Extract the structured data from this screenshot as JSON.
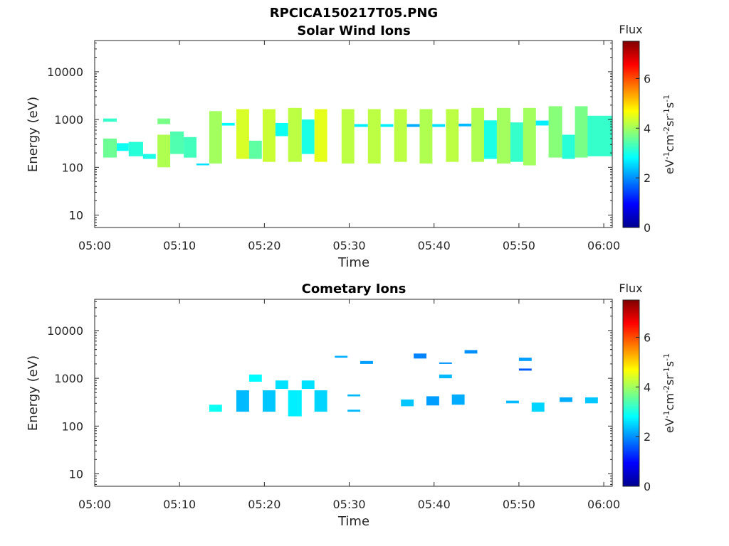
{
  "figure_title": "RPCICA150217T05.PNG",
  "colormap": [
    "#00008f",
    "#0000ff",
    "#0080ff",
    "#00ffff",
    "#80ff80",
    "#ffff00",
    "#ff8000",
    "#ff0000",
    "#800000"
  ],
  "chart_data": [
    {
      "type": "heatmap",
      "title": "Solar Wind Ions",
      "xlabel": "Time",
      "ylabel": "Energy (eV)",
      "x_ticks": [
        "05:00",
        "05:10",
        "05:20",
        "05:30",
        "05:40",
        "05:50",
        "06:00"
      ],
      "x_range_minutes": [
        0,
        61
      ],
      "y_scale": "log",
      "y_ticks": [
        "10",
        "100",
        "1000",
        "10000"
      ],
      "y_range": [
        5.5,
        45000
      ],
      "colorbar": {
        "label": "Flux",
        "unit": "eV-1cm-2sr-1s-1",
        "ticks": [
          "0",
          "2",
          "4",
          "6"
        ],
        "range": [
          0,
          7.5
        ]
      },
      "blocks": [
        {
          "t0": 1.0,
          "t1": 2.6,
          "e0": 900,
          "e1": 1050,
          "v": 3.2
        },
        {
          "t0": 1.0,
          "t1": 2.6,
          "e0": 160,
          "e1": 400,
          "v": 3.6
        },
        {
          "t0": 2.6,
          "t1": 4.0,
          "e0": 220,
          "e1": 320,
          "v": 2.9
        },
        {
          "t0": 4.0,
          "t1": 5.7,
          "e0": 170,
          "e1": 340,
          "v": 3.1
        },
        {
          "t0": 5.7,
          "t1": 7.2,
          "e0": 150,
          "e1": 190,
          "v": 3.0
        },
        {
          "t0": 7.4,
          "t1": 8.9,
          "e0": 100,
          "e1": 480,
          "v": 4.1
        },
        {
          "t0": 7.4,
          "t1": 8.9,
          "e0": 800,
          "e1": 1050,
          "v": 3.7
        },
        {
          "t0": 8.9,
          "t1": 10.5,
          "e0": 190,
          "e1": 560,
          "v": 3.4
        },
        {
          "t0": 10.5,
          "t1": 12.0,
          "e0": 160,
          "e1": 430,
          "v": 3.3
        },
        {
          "t0": 12.0,
          "t1": 13.5,
          "e0": 110,
          "e1": 120,
          "v": 2.6
        },
        {
          "t0": 13.5,
          "t1": 15.0,
          "e0": 120,
          "e1": 1500,
          "v": 4.0
        },
        {
          "t0": 15.0,
          "t1": 16.5,
          "e0": 750,
          "e1": 850,
          "v": 2.8
        },
        {
          "t0": 16.7,
          "t1": 18.2,
          "e0": 150,
          "e1": 1650,
          "v": 4.4
        },
        {
          "t0": 18.2,
          "t1": 19.7,
          "e0": 150,
          "e1": 360,
          "v": 3.5
        },
        {
          "t0": 19.8,
          "t1": 21.3,
          "e0": 130,
          "e1": 1650,
          "v": 4.3
        },
        {
          "t0": 21.3,
          "t1": 22.8,
          "e0": 450,
          "e1": 850,
          "v": 2.9
        },
        {
          "t0": 22.8,
          "t1": 24.4,
          "e0": 130,
          "e1": 1750,
          "v": 4.2
        },
        {
          "t0": 24.4,
          "t1": 25.9,
          "e0": 190,
          "e1": 1000,
          "v": 3.0
        },
        {
          "t0": 25.9,
          "t1": 27.4,
          "e0": 130,
          "e1": 1650,
          "v": 4.5
        },
        {
          "t0": 29.1,
          "t1": 30.6,
          "e0": 120,
          "e1": 1650,
          "v": 4.2
        },
        {
          "t0": 30.6,
          "t1": 32.2,
          "e0": 700,
          "e1": 800,
          "v": 2.7
        },
        {
          "t0": 32.2,
          "t1": 33.7,
          "e0": 120,
          "e1": 1650,
          "v": 4.2
        },
        {
          "t0": 33.7,
          "t1": 35.2,
          "e0": 700,
          "e1": 800,
          "v": 2.7
        },
        {
          "t0": 35.3,
          "t1": 36.8,
          "e0": 130,
          "e1": 1650,
          "v": 4.2
        },
        {
          "t0": 36.8,
          "t1": 38.3,
          "e0": 700,
          "e1": 800,
          "v": 2.2
        },
        {
          "t0": 38.3,
          "t1": 39.8,
          "e0": 120,
          "e1": 1650,
          "v": 4.1
        },
        {
          "t0": 39.8,
          "t1": 41.3,
          "e0": 700,
          "e1": 800,
          "v": 2.6
        },
        {
          "t0": 41.4,
          "t1": 42.9,
          "e0": 130,
          "e1": 1650,
          "v": 4.2
        },
        {
          "t0": 42.9,
          "t1": 44.4,
          "e0": 720,
          "e1": 820,
          "v": 2.3
        },
        {
          "t0": 44.4,
          "t1": 45.9,
          "e0": 130,
          "e1": 1750,
          "v": 4.1
        },
        {
          "t0": 45.9,
          "t1": 47.4,
          "e0": 150,
          "e1": 960,
          "v": 3.0
        },
        {
          "t0": 47.4,
          "t1": 49.0,
          "e0": 120,
          "e1": 1750,
          "v": 4.0
        },
        {
          "t0": 49.0,
          "t1": 50.5,
          "e0": 130,
          "e1": 870,
          "v": 3.2
        },
        {
          "t0": 50.5,
          "t1": 52.0,
          "e0": 110,
          "e1": 1750,
          "v": 4.0
        },
        {
          "t0": 52.0,
          "t1": 53.5,
          "e0": 750,
          "e1": 950,
          "v": 2.7
        },
        {
          "t0": 53.5,
          "t1": 55.1,
          "e0": 160,
          "e1": 1900,
          "v": 3.8
        },
        {
          "t0": 55.1,
          "t1": 56.6,
          "e0": 150,
          "e1": 480,
          "v": 3.1
        },
        {
          "t0": 56.6,
          "t1": 58.1,
          "e0": 160,
          "e1": 1900,
          "v": 3.7
        },
        {
          "t0": 58.1,
          "t1": 61.0,
          "e0": 170,
          "e1": 1200,
          "v": 3.2
        }
      ]
    },
    {
      "type": "heatmap",
      "title": "Cometary Ions",
      "xlabel": "Time",
      "ylabel": "Energy (eV)",
      "x_ticks": [
        "05:00",
        "05:10",
        "05:20",
        "05:30",
        "05:40",
        "05:50",
        "06:00"
      ],
      "x_range_minutes": [
        0,
        61
      ],
      "y_scale": "log",
      "y_ticks": [
        "10",
        "100",
        "1000",
        "10000"
      ],
      "y_range": [
        5.5,
        45000
      ],
      "colorbar": {
        "label": "Flux",
        "unit": "eV-1cm-2sr-1s-1",
        "ticks": [
          "0",
          "2",
          "4",
          "6"
        ],
        "range": [
          0,
          7.5
        ]
      },
      "blocks": [
        {
          "t0": 13.5,
          "t1": 15.0,
          "e0": 200,
          "e1": 280,
          "v": 2.9
        },
        {
          "t0": 16.7,
          "t1": 18.2,
          "e0": 200,
          "e1": 560,
          "v": 2.3
        },
        {
          "t0": 18.2,
          "t1": 19.7,
          "e0": 850,
          "e1": 1200,
          "v": 2.8
        },
        {
          "t0": 19.8,
          "t1": 21.3,
          "e0": 200,
          "e1": 560,
          "v": 2.4
        },
        {
          "t0": 21.3,
          "t1": 22.8,
          "e0": 600,
          "e1": 900,
          "v": 2.6
        },
        {
          "t0": 22.8,
          "t1": 24.4,
          "e0": 160,
          "e1": 560,
          "v": 2.7
        },
        {
          "t0": 24.4,
          "t1": 25.9,
          "e0": 600,
          "e1": 900,
          "v": 2.6
        },
        {
          "t0": 25.9,
          "t1": 27.4,
          "e0": 200,
          "e1": 560,
          "v": 2.5
        },
        {
          "t0": 28.3,
          "t1": 29.8,
          "e0": 2700,
          "e1": 2950,
          "v": 2.2
        },
        {
          "t0": 29.8,
          "t1": 31.3,
          "e0": 420,
          "e1": 460,
          "v": 2.3
        },
        {
          "t0": 29.8,
          "t1": 31.3,
          "e0": 200,
          "e1": 220,
          "v": 2.3
        },
        {
          "t0": 31.3,
          "t1": 32.8,
          "e0": 2000,
          "e1": 2300,
          "v": 2.1
        },
        {
          "t0": 36.1,
          "t1": 37.6,
          "e0": 260,
          "e1": 360,
          "v": 2.4
        },
        {
          "t0": 37.6,
          "t1": 39.1,
          "e0": 2600,
          "e1": 3300,
          "v": 1.9
        },
        {
          "t0": 39.1,
          "t1": 40.6,
          "e0": 270,
          "e1": 420,
          "v": 2.1
        },
        {
          "t0": 40.6,
          "t1": 42.1,
          "e0": 1000,
          "e1": 1200,
          "v": 2.3
        },
        {
          "t0": 40.6,
          "t1": 42.1,
          "e0": 2000,
          "e1": 2150,
          "v": 2.0
        },
        {
          "t0": 42.1,
          "t1": 43.6,
          "e0": 280,
          "e1": 460,
          "v": 2.2
        },
        {
          "t0": 43.6,
          "t1": 45.1,
          "e0": 3300,
          "e1": 3900,
          "v": 2.0
        },
        {
          "t0": 48.5,
          "t1": 50.0,
          "e0": 300,
          "e1": 340,
          "v": 2.3
        },
        {
          "t0": 50.0,
          "t1": 51.5,
          "e0": 2300,
          "e1": 2700,
          "v": 2.1
        },
        {
          "t0": 50.0,
          "t1": 51.5,
          "e0": 1450,
          "e1": 1600,
          "v": 1.6
        },
        {
          "t0": 51.5,
          "t1": 53.0,
          "e0": 200,
          "e1": 310,
          "v": 2.5
        },
        {
          "t0": 54.8,
          "t1": 56.3,
          "e0": 320,
          "e1": 400,
          "v": 2.2
        },
        {
          "t0": 57.8,
          "t1": 59.3,
          "e0": 300,
          "e1": 400,
          "v": 2.4
        }
      ]
    }
  ]
}
